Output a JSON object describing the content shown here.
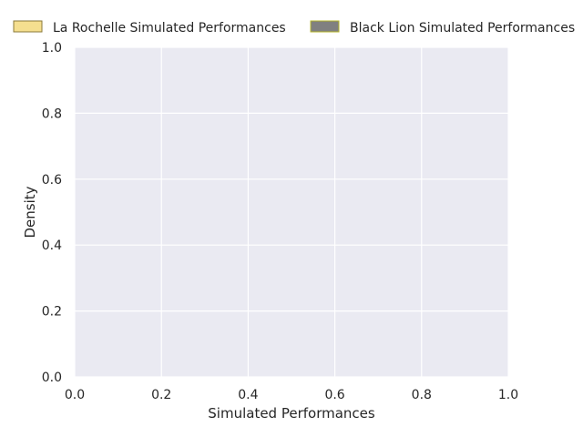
{
  "chart_data": {
    "type": "area",
    "xlabel": "Simulated Performances",
    "ylabel": "Density",
    "xlim": [
      0,
      1
    ],
    "ylim": [
      0,
      1
    ],
    "xticks": [
      "0.0",
      "0.2",
      "0.4",
      "0.6",
      "0.8",
      "1.0"
    ],
    "yticks": [
      "0.0",
      "0.2",
      "0.4",
      "0.6",
      "0.8",
      "1.0"
    ],
    "grid": true,
    "legend_position": "top",
    "series": [
      {
        "name": "La Rochelle Simulated Performances",
        "fill_color": "#f5df8f",
        "edge_color": "#8a7a3a",
        "values": []
      },
      {
        "name": "Black Lion Simulated Performances",
        "fill_color": "#808080",
        "edge_color": "#b5b52a",
        "values": []
      }
    ],
    "colors": {
      "plot_background": "#eaeaf2",
      "grid": "#ffffff",
      "text": "#262626"
    }
  }
}
